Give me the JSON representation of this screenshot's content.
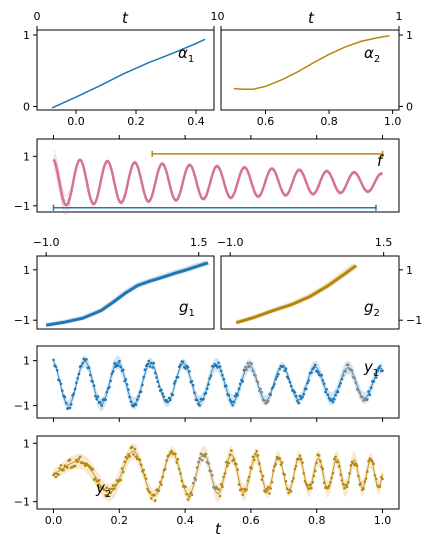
{
  "chart_data": [
    {
      "id": "alpha1",
      "type": "line",
      "annotation": {
        "base": "α",
        "sub": "1"
      },
      "top_axis": {
        "label": "t",
        "ticks": [
          0,
          1
        ],
        "tick_labels": [
          "0",
          "1"
        ],
        "range": [
          0,
          1
        ]
      },
      "bottom_axis": {
        "ticks": [
          0.0,
          0.2,
          0.4
        ],
        "tick_labels": [
          "0.0",
          "0.2",
          "0.4"
        ],
        "range": [
          -0.13,
          0.46
        ]
      },
      "left_axis": {
        "ticks": [
          0,
          1
        ],
        "tick_labels": [
          "0",
          "1"
        ],
        "range": [
          -0.05,
          1.07
        ]
      },
      "series": [
        {
          "color": "#1f77b4",
          "x": [
            -0.08,
            0.0,
            0.08,
            0.16,
            0.24,
            0.32,
            0.4,
            0.43
          ],
          "y": [
            -0.02,
            0.13,
            0.29,
            0.46,
            0.61,
            0.74,
            0.88,
            0.94
          ]
        }
      ]
    },
    {
      "id": "alpha2",
      "type": "line",
      "annotation": {
        "base": "α",
        "sub": "2"
      },
      "top_axis": {
        "label": "t",
        "ticks": [
          0,
          1
        ],
        "tick_labels": [
          "0",
          "1"
        ],
        "range": [
          0,
          1
        ]
      },
      "bottom_axis": {
        "ticks": [
          0.6,
          0.8,
          1.0
        ],
        "tick_labels": [
          "0.6",
          "0.8",
          "1.0"
        ],
        "range": [
          0.46,
          1.02
        ]
      },
      "right_axis": {
        "ticks": [
          0,
          1
        ],
        "tick_labels": [
          "0",
          "1"
        ],
        "range": [
          -0.05,
          1.07
        ]
      },
      "series": [
        {
          "color": "#b8860b",
          "x": [
            0.5,
            0.53,
            0.56,
            0.6,
            0.65,
            0.7,
            0.75,
            0.8,
            0.85,
            0.9,
            0.95,
            0.99
          ],
          "y": [
            0.25,
            0.24,
            0.24,
            0.28,
            0.37,
            0.48,
            0.61,
            0.73,
            0.83,
            0.91,
            0.96,
            0.99
          ]
        }
      ]
    },
    {
      "id": "f",
      "type": "line",
      "annotation": {
        "base": "f",
        "sub": ""
      },
      "left_axis": {
        "ticks": [
          1,
          -1
        ],
        "tick_labels": [
          "1",
          "−1"
        ],
        "range": [
          -1.25,
          1.7
        ]
      },
      "x_range": [
        -0.05,
        1.05
      ],
      "signal": {
        "color": "#d6729a",
        "x_start": 0.0,
        "x_end": 1.0,
        "amplitude_start": 0.95,
        "amplitude_end": 0.35,
        "oscillations": 12
      },
      "bars": [
        {
          "color": "#b8860b",
          "x_start": 0.3,
          "x_end": 1.0,
          "y": 1.1
        },
        {
          "color": "#1f77b4",
          "x_start": 0.0,
          "x_end": 0.98,
          "y": -1.08
        }
      ]
    },
    {
      "id": "g1",
      "type": "line",
      "annotation": {
        "base": "g",
        "sub": "1"
      },
      "top_axis": {
        "ticks": [
          -1.0,
          1.5
        ],
        "tick_labels": [
          "−1.0",
          "1.5"
        ],
        "range": [
          -1.15,
          1.75
        ]
      },
      "left_axis": {
        "ticks": [
          1,
          -1
        ],
        "tick_labels": [
          "1",
          "−1"
        ],
        "range": [
          -1.35,
          1.55
        ]
      },
      "series": [
        {
          "color": "#1f77b4",
          "x": [
            -1.0,
            -0.7,
            -0.4,
            -0.1,
            0.1,
            0.3,
            0.5,
            0.7,
            0.9,
            1.1,
            1.3,
            1.5,
            1.65
          ],
          "y": [
            -1.2,
            -1.08,
            -0.92,
            -0.62,
            -0.28,
            0.08,
            0.38,
            0.55,
            0.7,
            0.86,
            1.0,
            1.16,
            1.28
          ]
        }
      ]
    },
    {
      "id": "g2",
      "type": "line",
      "annotation": {
        "base": "g",
        "sub": "2"
      },
      "top_axis": {
        "ticks": [
          -1.0,
          1.5
        ],
        "tick_labels": [
          "−1.0",
          "1.5"
        ],
        "range": [
          -1.15,
          1.75
        ]
      },
      "right_axis": {
        "ticks": [
          1,
          -1
        ],
        "tick_labels": [
          "1",
          "−1"
        ],
        "range": [
          -1.35,
          1.55
        ]
      },
      "series": [
        {
          "color": "#b8860b",
          "x": [
            -0.9,
            -0.6,
            -0.3,
            0.0,
            0.3,
            0.6,
            0.9,
            1.05
          ],
          "y": [
            -1.1,
            -0.88,
            -0.62,
            -0.38,
            -0.06,
            0.38,
            0.9,
            1.17
          ]
        }
      ]
    },
    {
      "id": "y1",
      "type": "scatter",
      "annotation": {
        "base": "y",
        "sub": "1"
      },
      "left_axis": {
        "ticks": [
          1,
          -1
        ],
        "tick_labels": [
          "1",
          "−1"
        ],
        "range": [
          -1.55,
          1.65
        ]
      },
      "x_range": [
        -0.05,
        1.05
      ],
      "signal": {
        "color": "#1f77b4",
        "band_color": "#aecde8",
        "amplitude_start": 1.0,
        "amplitude_end": 0.65,
        "oscillations": 10,
        "gaps": [
          [
            0.58,
            0.66
          ],
          [
            0.88,
            0.95
          ]
        ],
        "gap_color": "#888888"
      }
    },
    {
      "id": "y2",
      "type": "scatter",
      "annotation": {
        "base": "y",
        "sub": "2"
      },
      "left_axis": {
        "ticks": [
          1,
          -1
        ],
        "tick_labels": [
          "1",
          "−1"
        ],
        "range": [
          -1.25,
          1.25
        ]
      },
      "bottom_axis": {
        "label": "t",
        "ticks": [
          0.0,
          0.2,
          0.4,
          0.6,
          0.8,
          1.0
        ],
        "tick_labels": [
          "0.0",
          "0.2",
          "0.4",
          "0.6",
          "0.8",
          "1.0"
        ],
        "range": [
          -0.05,
          1.05
        ]
      },
      "x_range": [
        -0.05,
        1.05
      ],
      "signal": {
        "color": "#b8860b",
        "band_color": "#ecd9a8",
        "gaps": [
          [
            0.42,
            0.5
          ]
        ],
        "gap_color": "#888888"
      }
    }
  ]
}
